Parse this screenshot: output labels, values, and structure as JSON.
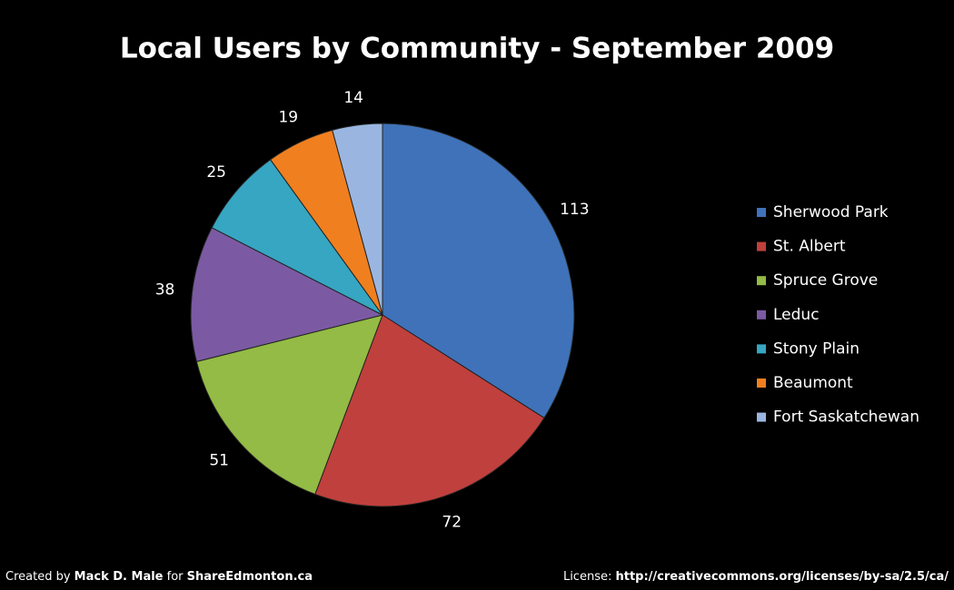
{
  "chart_data": {
    "type": "pie",
    "title": "Local Users by Community - September 2009",
    "categories": [
      "Sherwood Park",
      "St. Albert",
      "Spruce Grove",
      "Leduc",
      "Stony Plain",
      "Beaumont",
      "Fort Saskatchewan"
    ],
    "values": [
      113,
      72,
      51,
      38,
      25,
      19,
      14
    ],
    "colors": [
      "#3f72b9",
      "#c0403d",
      "#93bb45",
      "#7b5aa3",
      "#36a6c2",
      "#f07f1f",
      "#9ab6e0"
    ],
    "legend": "right"
  },
  "footer": {
    "left": [
      "Created by ",
      "Mack D. Male",
      " for ",
      "ShareEdmonton.ca"
    ],
    "right": [
      "License: ",
      "http://creativecommons.org/licenses/by-sa/2.5/ca/"
    ]
  }
}
